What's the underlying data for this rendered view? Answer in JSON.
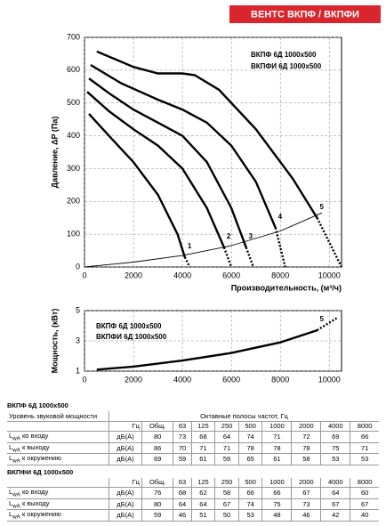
{
  "header": {
    "title": "ВЕНТС ВКПФ / ВКПФИ"
  },
  "chart_data": [
    {
      "type": "line",
      "y_label": "Давление, ΔP (Па)",
      "x_label": "Производительность, (м³/ч)",
      "annotations": [
        "ВКПФ  6Д 1000x500",
        "ВКПФИ  6Д 1000x500"
      ],
      "xlim": [
        0,
        10500
      ],
      "xticks": [
        0,
        2000,
        4000,
        6000,
        8000,
        10000
      ],
      "ylim": [
        0,
        700
      ],
      "yticks": [
        0,
        100,
        200,
        300,
        400,
        500,
        600,
        700
      ],
      "grid": true,
      "series": [
        {
          "name": "1",
          "color": "#000000",
          "style": "solid",
          "x": [
            180,
            1000,
            2000,
            3000,
            3800,
            4100
          ],
          "values": [
            467,
            400,
            320,
            220,
            100,
            30
          ]
        },
        {
          "color": "#000000",
          "style": "dotted",
          "x": [
            4100,
            4300
          ],
          "values": [
            30,
            0
          ]
        },
        {
          "name": "2",
          "color": "#000000",
          "style": "solid",
          "x": [
            110,
            1000,
            2000,
            3000,
            4000,
            5000,
            5700
          ],
          "values": [
            534,
            475,
            420,
            370,
            300,
            180,
            60
          ]
        },
        {
          "color": "#000000",
          "style": "dotted",
          "x": [
            5700,
            6000
          ],
          "values": [
            60,
            0
          ]
        },
        {
          "name": "3",
          "color": "#000000",
          "style": "solid",
          "x": [
            180,
            1000,
            2000,
            3000,
            4000,
            5000,
            6000,
            6600
          ],
          "values": [
            575,
            530,
            480,
            440,
            400,
            320,
            180,
            60
          ]
        },
        {
          "color": "#000000",
          "style": "dotted",
          "x": [
            6600,
            6900
          ],
          "values": [
            60,
            0
          ]
        },
        {
          "name": "4",
          "color": "#000000",
          "style": "solid",
          "x": [
            250,
            1500,
            3000,
            4000,
            5000,
            6000,
            7000,
            7800
          ],
          "values": [
            616,
            560,
            510,
            480,
            440,
            370,
            260,
            120
          ]
        },
        {
          "color": "#000000",
          "style": "dotted",
          "x": [
            7800,
            8200
          ],
          "values": [
            120,
            0
          ]
        },
        {
          "name": "5",
          "color": "#000000",
          "style": "solid",
          "x": [
            500,
            2000,
            3000,
            4000,
            4500,
            5500,
            7000,
            8500,
            9500
          ],
          "values": [
            657,
            610,
            590,
            590,
            585,
            540,
            420,
            270,
            150
          ]
        },
        {
          "color": "#000000",
          "style": "dotted",
          "x": [
            9500,
            10500
          ],
          "values": [
            150,
            0
          ]
        },
        {
          "color": "#000000",
          "style": "thin",
          "x": [
            0,
            2000,
            4000,
            6000,
            8000,
            9700
          ],
          "values": [
            0,
            15,
            35,
            65,
            110,
            165
          ]
        }
      ]
    },
    {
      "type": "line",
      "y_label": "Мощность, (кВт)",
      "annotations": [
        "ВКПФ  6Д 1000x500",
        "ВКПФИ  6Д 1000x500"
      ],
      "xlim": [
        0,
        10500
      ],
      "xticks": [
        0,
        2000,
        4000,
        6000,
        8000,
        10000
      ],
      "ylim": [
        1,
        5
      ],
      "yticks": [
        1,
        3,
        5
      ],
      "grid": true,
      "series": [
        {
          "name": "5",
          "color": "#000000",
          "style": "solid",
          "x": [
            500,
            2000,
            4000,
            6000,
            8000,
            9500
          ],
          "values": [
            1.1,
            1.3,
            1.7,
            2.2,
            2.9,
            3.7
          ]
        },
        {
          "color": "#000000",
          "style": "dotted",
          "x": [
            9500,
            10300
          ],
          "values": [
            3.7,
            4.5
          ]
        }
      ]
    }
  ],
  "tables": [
    {
      "title": "ВКПФ 6Д 1000x500",
      "caption": "Уровень звуковой мощности",
      "bands_label": "Октавные полосы частот, Гц",
      "unit_header": "Гц",
      "columns": [
        "Общ.",
        "63",
        "125",
        "250",
        "500",
        "1000",
        "2000",
        "4000",
        "8000"
      ],
      "rows": [
        {
          "symbol": "L",
          "subscript": "wA",
          "label": " ко входу",
          "unit": "дБ(А)",
          "values": [
            80,
            73,
            68,
            64,
            74,
            71,
            72,
            69,
            66
          ]
        },
        {
          "symbol": "L",
          "subscript": "wA",
          "label": " к выходу",
          "unit": "дБ(А)",
          "values": [
            86,
            70,
            71,
            71,
            78,
            78,
            78,
            75,
            71
          ]
        },
        {
          "symbol": "L",
          "subscript": "wA",
          "label": " к окружению",
          "unit": "дБ(А)",
          "values": [
            69,
            59,
            61,
            59,
            65,
            61,
            58,
            53,
            53
          ]
        }
      ]
    },
    {
      "title": "ВКПФИ 6Д 1000x500",
      "unit_header": "Гц",
      "columns": [
        "Общ.",
        "63",
        "125",
        "250",
        "500",
        "1000",
        "2000",
        "4000",
        "8000"
      ],
      "rows": [
        {
          "symbol": "L",
          "subscript": "wA",
          "label": " ко входу",
          "unit": "дБ(А)",
          "values": [
            76,
            68,
            62,
            58,
            66,
            66,
            67,
            64,
            60
          ]
        },
        {
          "symbol": "L",
          "subscript": "wA",
          "label": " к выходу",
          "unit": "дБ(А)",
          "values": [
            80,
            64,
            64,
            67,
            74,
            75,
            73,
            67,
            67
          ]
        },
        {
          "symbol": "L",
          "subscript": "wA",
          "label": " к окружению",
          "unit": "дБ(А)",
          "values": [
            59,
            46,
            51,
            50,
            53,
            48,
            46,
            42,
            40
          ]
        }
      ]
    }
  ]
}
